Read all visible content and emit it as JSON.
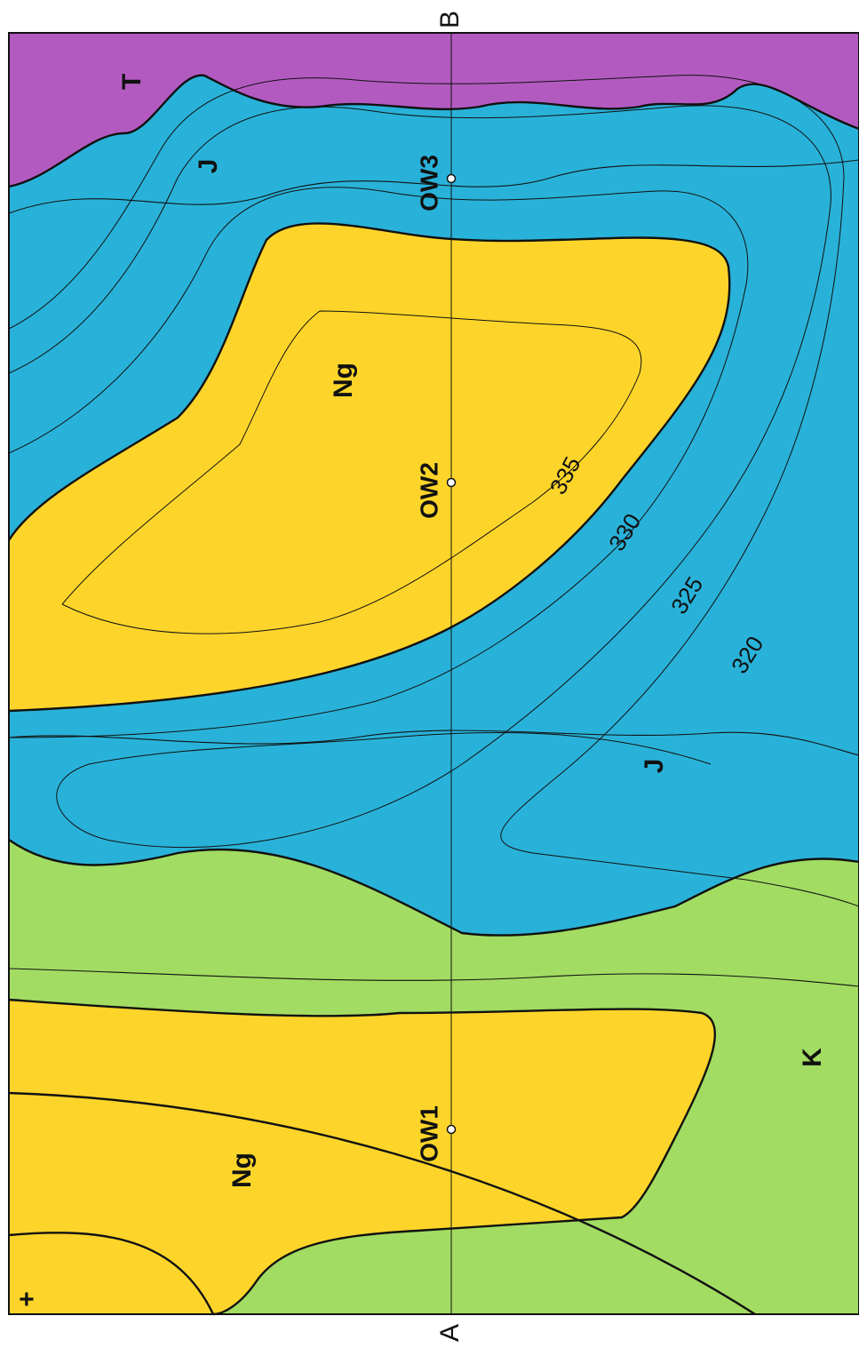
{
  "map": {
    "section_line": {
      "start_label": "A",
      "end_label": "B"
    },
    "units": [
      {
        "code": "T",
        "color": "#b35ac1"
      },
      {
        "code": "J",
        "color": "#29b2d9"
      },
      {
        "code": "J",
        "color": "#29b2d9"
      },
      {
        "code": "Ng",
        "color": "#fdd52a"
      },
      {
        "code": "Ng",
        "color": "#fdd52a"
      },
      {
        "code": "K",
        "color": "#a2dc62"
      }
    ],
    "wells": [
      "OW3",
      "OW2",
      "OW1"
    ],
    "contours": [
      "335",
      "330",
      "325",
      "320"
    ],
    "corner_mark": "+"
  }
}
